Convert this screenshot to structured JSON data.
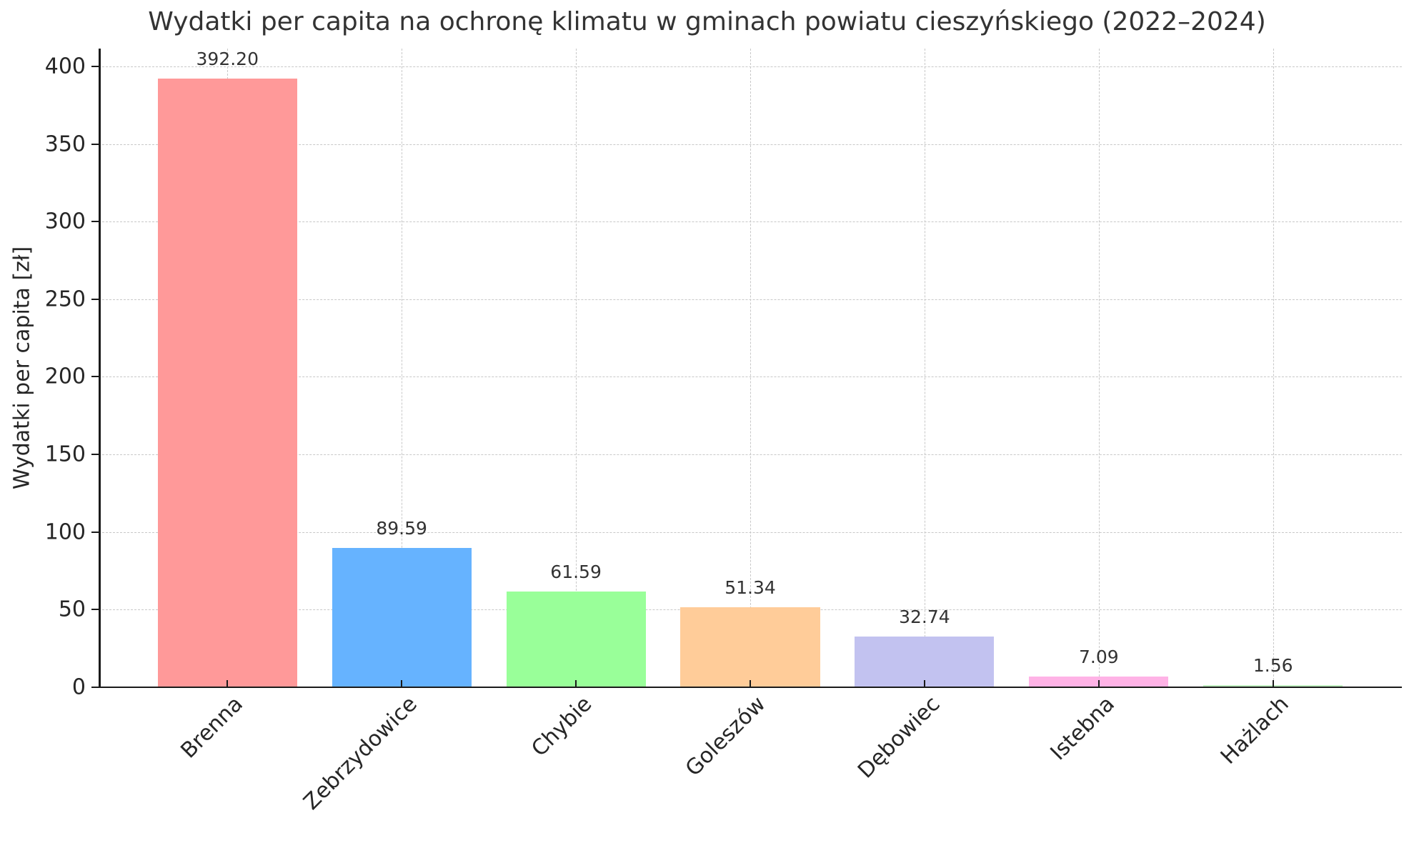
{
  "chart_data": {
    "type": "bar",
    "title": "Wydatki per capita na ochronę klimatu w gminach powiatu cieszyńskiego (2022–2024)",
    "xlabel": "",
    "ylabel": "Wydatki per capita [zł]",
    "categories": [
      "Brenna",
      "Zebrzydowice",
      "Chybie",
      "Goleszów",
      "Dębowiec",
      "Istebna",
      "Hażlach"
    ],
    "values": [
      392.2,
      89.59,
      61.59,
      51.34,
      32.74,
      7.09,
      1.56
    ],
    "value_labels": [
      "392.20",
      "89.59",
      "61.59",
      "51.34",
      "32.74",
      "7.09",
      "1.56"
    ],
    "colors": [
      "#ff9999",
      "#66b3ff",
      "#99ff99",
      "#ffcc99",
      "#c2c2f0",
      "#ffb3e6",
      "#c2f0c2"
    ],
    "ylim": [
      0,
      411.5
    ],
    "yticks": [
      0,
      50,
      100,
      150,
      200,
      250,
      300,
      350,
      400
    ],
    "grid": true,
    "grid_style": "dashed",
    "xtick_rotation": 45,
    "legend": null
  }
}
